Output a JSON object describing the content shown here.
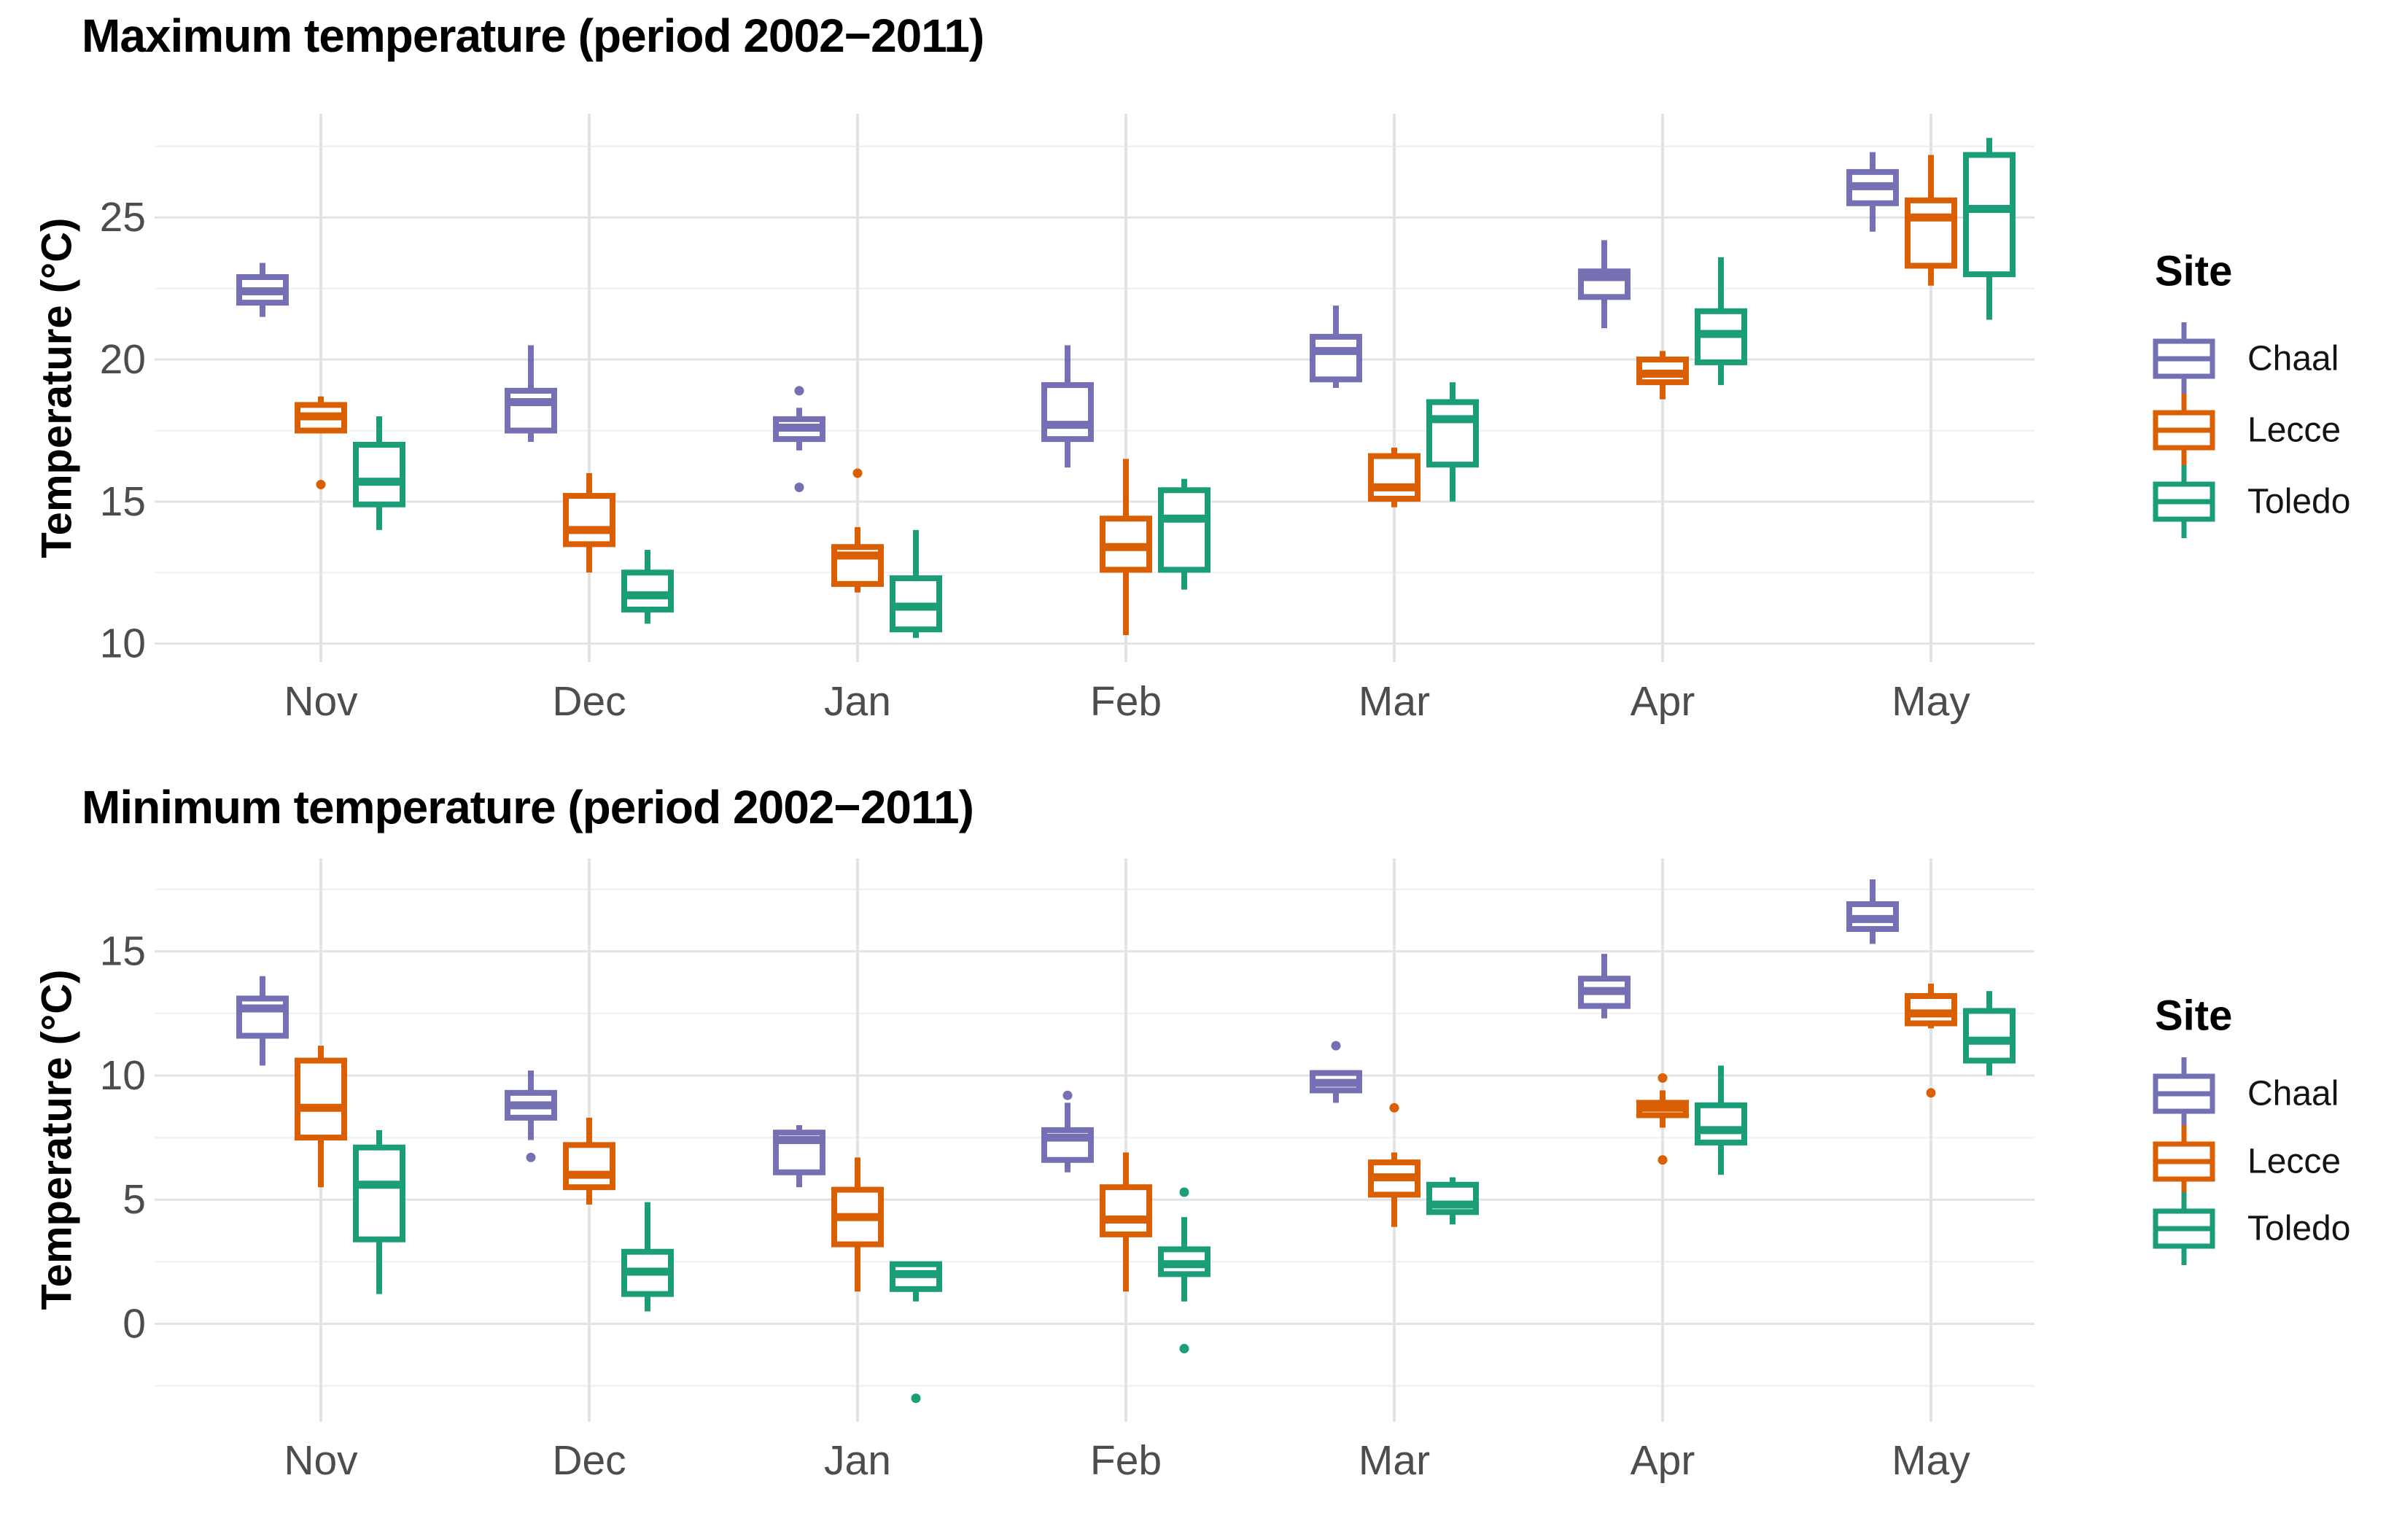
{
  "page": {
    "background": "#FFFFFF"
  },
  "site_colors": {
    "Chaal": "#7570B3",
    "Lecce": "#D95F02",
    "Toledo": "#1B9E77"
  },
  "chart_data": [
    {
      "type": "boxplot",
      "title": "Maximum temperature (period 2002−2011)",
      "xlabel": "",
      "ylabel": "Temperature (°C)",
      "categories": [
        "Nov",
        "Dec",
        "Jan",
        "Feb",
        "Mar",
        "Apr",
        "May"
      ],
      "yticks": [
        10,
        15,
        20,
        25
      ],
      "ylim": [
        9.35,
        28.65
      ],
      "grid": "major+minor",
      "legend": {
        "title": "Site",
        "position": "right"
      },
      "series": [
        {
          "name": "Chaal",
          "color": "#7570B3",
          "boxes": [
            {
              "min": 21.5,
              "q1": 22.0,
              "median": 22.4,
              "q3": 22.9,
              "max": 23.4,
              "outliers": []
            },
            {
              "min": 17.1,
              "q1": 17.5,
              "median": 18.5,
              "q3": 18.9,
              "max": 20.5,
              "outliers": []
            },
            {
              "min": 16.8,
              "q1": 17.2,
              "median": 17.6,
              "q3": 17.9,
              "max": 18.3,
              "outliers": [
                18.9,
                15.5
              ]
            },
            {
              "min": 16.2,
              "q1": 17.2,
              "median": 17.7,
              "q3": 19.1,
              "max": 20.5,
              "outliers": []
            },
            {
              "min": 19.0,
              "q1": 19.3,
              "median": 20.3,
              "q3": 20.8,
              "max": 21.9,
              "outliers": []
            },
            {
              "min": 21.1,
              "q1": 22.2,
              "median": 22.9,
              "q3": 23.1,
              "max": 24.2,
              "outliers": []
            },
            {
              "min": 24.5,
              "q1": 25.5,
              "median": 26.1,
              "q3": 26.6,
              "max": 27.3,
              "outliers": []
            }
          ]
        },
        {
          "name": "Lecce",
          "color": "#D95F02",
          "boxes": [
            {
              "min": 17.4,
              "q1": 17.5,
              "median": 18.0,
              "q3": 18.4,
              "max": 18.7,
              "outliers": [
                15.6
              ]
            },
            {
              "min": 12.5,
              "q1": 13.5,
              "median": 14.0,
              "q3": 15.2,
              "max": 16.0,
              "outliers": []
            },
            {
              "min": 11.8,
              "q1": 12.1,
              "median": 13.1,
              "q3": 13.4,
              "max": 14.1,
              "outliers": [
                16.0
              ]
            },
            {
              "min": 10.3,
              "q1": 12.6,
              "median": 13.4,
              "q3": 14.4,
              "max": 16.5,
              "outliers": []
            },
            {
              "min": 14.8,
              "q1": 15.1,
              "median": 15.5,
              "q3": 16.6,
              "max": 16.9,
              "outliers": []
            },
            {
              "min": 18.6,
              "q1": 19.2,
              "median": 19.5,
              "q3": 20.0,
              "max": 20.3,
              "outliers": []
            },
            {
              "min": 22.6,
              "q1": 23.3,
              "median": 25.0,
              "q3": 25.6,
              "max": 27.2,
              "outliers": []
            }
          ]
        },
        {
          "name": "Toledo",
          "color": "#1B9E77",
          "boxes": [
            {
              "min": 14.0,
              "q1": 14.9,
              "median": 15.7,
              "q3": 17.0,
              "max": 18.0,
              "outliers": []
            },
            {
              "min": 10.7,
              "q1": 11.2,
              "median": 11.7,
              "q3": 12.5,
              "max": 13.3,
              "outliers": []
            },
            {
              "min": 10.2,
              "q1": 10.5,
              "median": 11.3,
              "q3": 12.3,
              "max": 14.0,
              "outliers": []
            },
            {
              "min": 11.9,
              "q1": 12.6,
              "median": 14.4,
              "q3": 15.4,
              "max": 15.8,
              "outliers": []
            },
            {
              "min": 15.0,
              "q1": 16.3,
              "median": 17.9,
              "q3": 18.5,
              "max": 19.2,
              "outliers": []
            },
            {
              "min": 19.1,
              "q1": 19.9,
              "median": 20.9,
              "q3": 21.7,
              "max": 23.6,
              "outliers": []
            },
            {
              "min": 21.4,
              "q1": 23.0,
              "median": 25.3,
              "q3": 27.2,
              "max": 27.8,
              "outliers": []
            }
          ]
        }
      ]
    },
    {
      "type": "boxplot",
      "title": "Minimum temperature (period 2002−2011)",
      "xlabel": "",
      "ylabel": "Temperature (°C)",
      "categories": [
        "Nov",
        "Dec",
        "Jan",
        "Feb",
        "Mar",
        "Apr",
        "May"
      ],
      "yticks": [
        0,
        5,
        10,
        15
      ],
      "ylim": [
        -3.95,
        18.75
      ],
      "grid": "major+minor",
      "legend": {
        "title": "Site",
        "position": "right"
      },
      "series": [
        {
          "name": "Chaal",
          "color": "#7570B3",
          "boxes": [
            {
              "min": 10.4,
              "q1": 11.6,
              "median": 12.7,
              "q3": 13.1,
              "max": 14.0,
              "outliers": []
            },
            {
              "min": 7.4,
              "q1": 8.3,
              "median": 8.8,
              "q3": 9.3,
              "max": 10.2,
              "outliers": [
                6.7
              ]
            },
            {
              "min": 5.5,
              "q1": 6.1,
              "median": 7.4,
              "q3": 7.7,
              "max": 8.0,
              "outliers": []
            },
            {
              "min": 6.1,
              "q1": 6.6,
              "median": 7.5,
              "q3": 7.8,
              "max": 8.9,
              "outliers": [
                9.2
              ]
            },
            {
              "min": 8.9,
              "q1": 9.4,
              "median": 9.7,
              "q3": 10.1,
              "max": 10.2,
              "outliers": [
                11.2
              ]
            },
            {
              "min": 12.3,
              "q1": 12.8,
              "median": 13.4,
              "q3": 13.9,
              "max": 14.9,
              "outliers": []
            },
            {
              "min": 15.3,
              "q1": 15.9,
              "median": 16.3,
              "q3": 16.9,
              "max": 17.9,
              "outliers": []
            }
          ]
        },
        {
          "name": "Lecce",
          "color": "#D95F02",
          "boxes": [
            {
              "min": 5.5,
              "q1": 7.5,
              "median": 8.7,
              "q3": 10.6,
              "max": 11.2,
              "outliers": []
            },
            {
              "min": 4.8,
              "q1": 5.5,
              "median": 6.0,
              "q3": 7.2,
              "max": 8.3,
              "outliers": []
            },
            {
              "min": 1.3,
              "q1": 3.2,
              "median": 4.3,
              "q3": 5.4,
              "max": 6.7,
              "outliers": []
            },
            {
              "min": 1.3,
              "q1": 3.6,
              "median": 4.2,
              "q3": 5.5,
              "max": 6.9,
              "outliers": []
            },
            {
              "min": 3.9,
              "q1": 5.2,
              "median": 5.9,
              "q3": 6.5,
              "max": 6.9,
              "outliers": [
                8.7
              ]
            },
            {
              "min": 7.9,
              "q1": 8.4,
              "median": 8.7,
              "q3": 8.9,
              "max": 9.4,
              "outliers": [
                9.9,
                6.6
              ]
            },
            {
              "min": 11.9,
              "q1": 12.1,
              "median": 12.5,
              "q3": 13.2,
              "max": 13.7,
              "outliers": [
                9.3
              ]
            }
          ]
        },
        {
          "name": "Toledo",
          "color": "#1B9E77",
          "boxes": [
            {
              "min": 1.2,
              "q1": 3.4,
              "median": 5.6,
              "q3": 7.1,
              "max": 7.8,
              "outliers": []
            },
            {
              "min": 0.5,
              "q1": 1.2,
              "median": 2.1,
              "q3": 2.9,
              "max": 4.9,
              "outliers": []
            },
            {
              "min": 0.9,
              "q1": 1.4,
              "median": 2.0,
              "q3": 2.4,
              "max": 2.4,
              "outliers": [
                -3.0
              ]
            },
            {
              "min": 0.9,
              "q1": 2.0,
              "median": 2.4,
              "q3": 3.0,
              "max": 4.3,
              "outliers": [
                5.3,
                -1.0
              ]
            },
            {
              "min": 4.0,
              "q1": 4.5,
              "median": 4.8,
              "q3": 5.6,
              "max": 5.9,
              "outliers": []
            },
            {
              "min": 6.0,
              "q1": 7.3,
              "median": 7.8,
              "q3": 8.8,
              "max": 10.4,
              "outliers": []
            },
            {
              "min": 10.0,
              "q1": 10.6,
              "median": 11.4,
              "q3": 12.6,
              "max": 13.4,
              "outliers": []
            }
          ]
        }
      ]
    }
  ]
}
